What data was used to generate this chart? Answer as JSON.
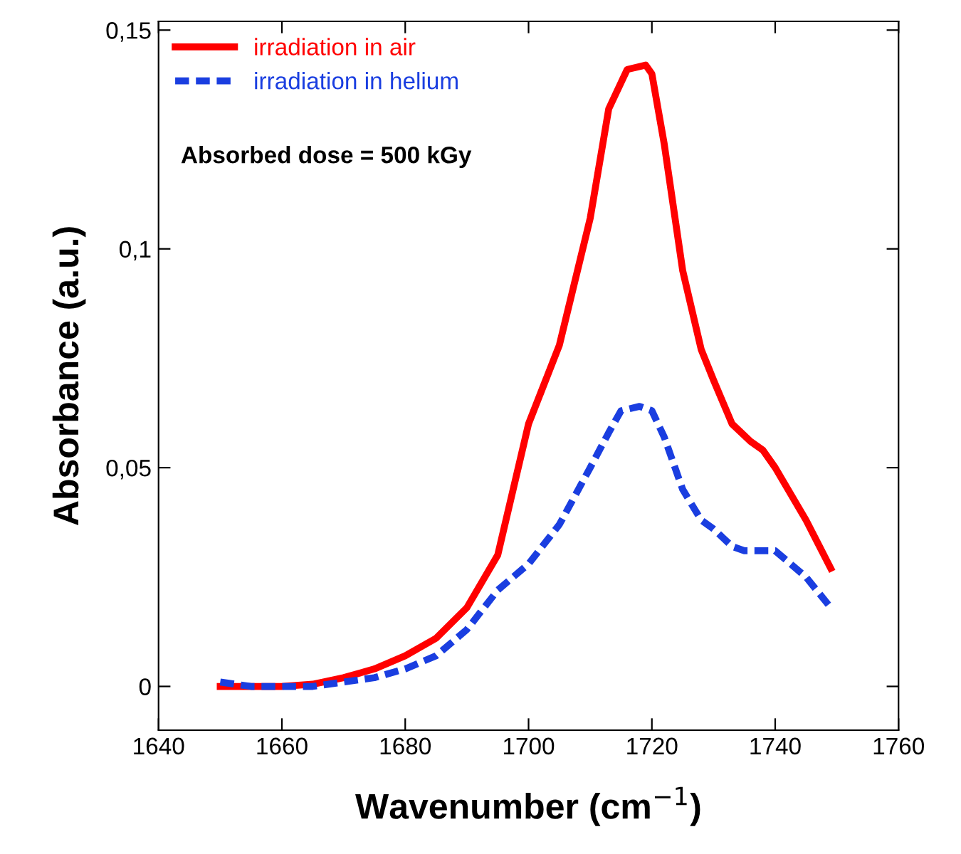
{
  "chart_data": {
    "type": "line",
    "xlabel": "Wavenumber (cm$^{−1}$)",
    "ylabel": "Absorbance (a.u.)",
    "annotations": [
      "Absorbed dose = 500 kGy"
    ],
    "xlim": [
      1640,
      1760
    ],
    "xticks": [
      1640,
      1660,
      1680,
      1700,
      1720,
      1740,
      1760
    ],
    "ylim": [
      -0.01,
      0.152
    ],
    "yticks": [
      {
        "value": 0,
        "label": "0"
      },
      {
        "value": 0.05,
        "label": "0,05"
      },
      {
        "value": 0.1,
        "label": "0,1"
      },
      {
        "value": 0.15,
        "label": "0,15"
      }
    ],
    "grid": false,
    "legend": "top left",
    "marker": "none",
    "series": [
      {
        "name": "irradiation in air",
        "color": "#ff0000",
        "line_style": "solid",
        "x": [
          1650,
          1655,
          1660,
          1665,
          1670,
          1675,
          1680,
          1685,
          1690,
          1695,
          1700,
          1705,
          1710,
          1713,
          1716,
          1719,
          1720,
          1722,
          1725,
          1728,
          1730,
          1733,
          1736,
          1738,
          1740,
          1745,
          1749
        ],
        "values": [
          0,
          0,
          0,
          0.0005,
          0.002,
          0.004,
          0.007,
          0.011,
          0.018,
          0.03,
          0.06,
          0.078,
          0.107,
          0.132,
          0.141,
          0.142,
          0.14,
          0.124,
          0.095,
          0.077,
          0.07,
          0.06,
          0.056,
          0.054,
          0.05,
          0.038,
          0.027
        ]
      },
      {
        "name": "irradiation in helium",
        "color": "#1a3ee0",
        "line_style": "dashed",
        "x": [
          1650,
          1655,
          1660,
          1665,
          1670,
          1675,
          1680,
          1685,
          1690,
          1695,
          1700,
          1705,
          1710,
          1713,
          1715,
          1718,
          1720,
          1722,
          1725,
          1728,
          1730,
          1733,
          1735,
          1740,
          1745,
          1749
        ],
        "values": [
          0.001,
          0,
          0,
          0,
          0.001,
          0.002,
          0.004,
          0.007,
          0.013,
          0.022,
          0.028,
          0.037,
          0.05,
          0.058,
          0.063,
          0.064,
          0.063,
          0.057,
          0.045,
          0.038,
          0.036,
          0.032,
          0.031,
          0.031,
          0.025,
          0.018
        ]
      }
    ]
  }
}
